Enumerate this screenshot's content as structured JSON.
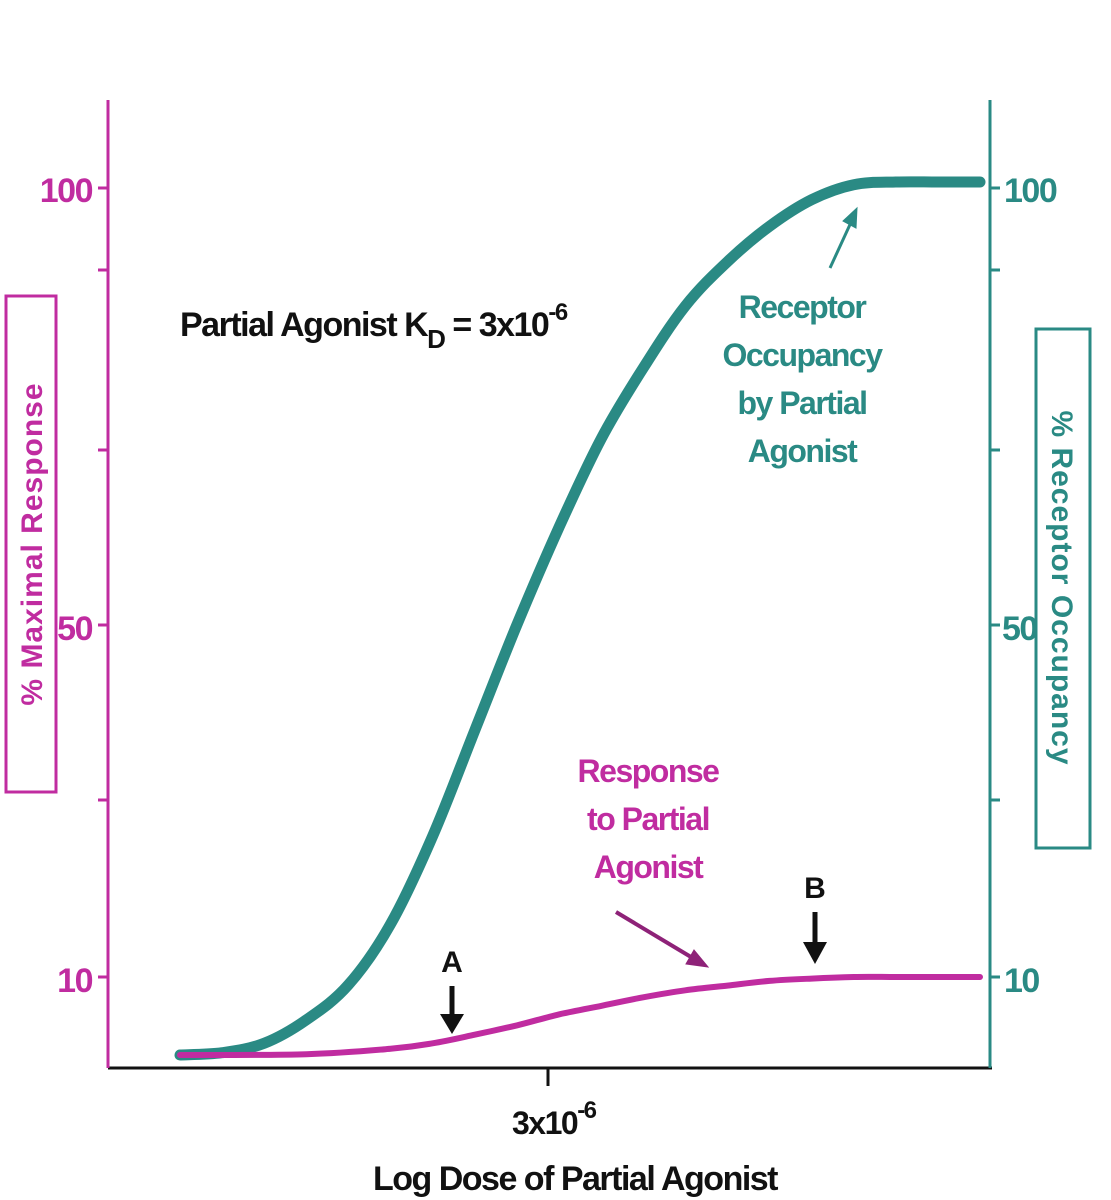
{
  "chart_data": {
    "type": "line",
    "xlabel": "Log Dose of Partial Agonist",
    "x_tick_label": {
      "base": "3x10",
      "exp": "-6"
    },
    "y_left": {
      "label": "% Maximal Response",
      "ticks": [
        "100",
        "50",
        "10"
      ],
      "color": "#c02ca0"
    },
    "y_right": {
      "label": "% Receptor Occupancy",
      "ticks": [
        "100",
        "50",
        "10"
      ],
      "color": "#2a8a84"
    },
    "kd_note": {
      "prefix": "Partial Agonist K",
      "sub": "D",
      "mid": " = 3x10",
      "exp": "-6"
    },
    "series": [
      {
        "name": "Receptor Occupancy by Partial Agonist",
        "color": "#2a8a84",
        "axis": "right",
        "x": [
          -7.8,
          -7.6,
          -7.4,
          -7.2,
          -7.0,
          -6.8,
          -6.6,
          -6.4,
          -6.2,
          -6.0,
          -5.8,
          -5.6,
          -5.4,
          -5.2,
          -5.0,
          -4.8,
          -4.6,
          -4.4,
          -4.2,
          -4.0
        ],
        "y": [
          0.0,
          0.3,
          1.5,
          4.5,
          9.0,
          16.0,
          26.0,
          38.0,
          50.0,
          61.0,
          71.0,
          79.0,
          86.0,
          91.0,
          95.0,
          98.0,
          99.7,
          100.0,
          100.0,
          100.0
        ]
      },
      {
        "name": "Response to Partial Agonist",
        "color": "#c02ca0",
        "axis": "left",
        "x": [
          -7.8,
          -7.2,
          -6.8,
          -6.6,
          -6.4,
          -6.2,
          -6.0,
          -5.8,
          -5.6,
          -5.4,
          -5.2,
          -5.0,
          -4.8,
          -4.6,
          -4.4,
          -4.2,
          -4.0
        ],
        "y": [
          0.0,
          0.1,
          0.8,
          1.5,
          2.6,
          3.8,
          5.2,
          6.3,
          7.4,
          8.3,
          8.9,
          9.5,
          9.8,
          10.0,
          10.0,
          10.0,
          10.0
        ]
      }
    ],
    "annotations": [
      {
        "text": "Receptor Occupancy by Partial Agonist",
        "lines": [
          "Receptor",
          "Occupancy",
          "by Partial",
          "Agonist"
        ],
        "color": "#2a8a84"
      },
      {
        "text": "Response to Partial Agonist",
        "lines": [
          "Response",
          "to Partial",
          "Agonist"
        ],
        "color": "#c02ca0"
      },
      {
        "text": "A",
        "x": -6.4,
        "color": "#000000"
      },
      {
        "text": "B",
        "x": -4.8,
        "color": "#000000"
      }
    ],
    "grid": false,
    "legend": "none"
  }
}
